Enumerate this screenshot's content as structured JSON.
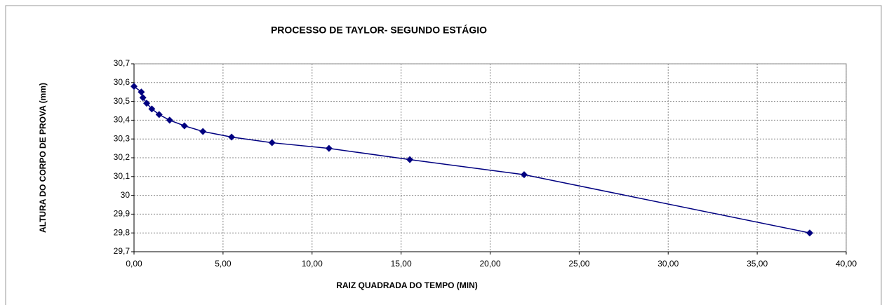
{
  "chart_data": {
    "type": "line",
    "title": "PROCESSO DE TAYLOR- SEGUNDO ESTÁGIO",
    "x_label": "RAIZ QUADRADA DO TEMPO (MIN)",
    "y_label": "ALTURA DO CORPO DE PROVA (mm)",
    "series": [
      {
        "color": "#000080",
        "x": [
          0,
          0.41,
          0.5,
          0.71,
          1.0,
          1.41,
          2.0,
          2.83,
          3.87,
          5.48,
          7.75,
          10.95,
          15.49,
          21.91,
          37.95
        ],
        "values": [
          30.58,
          30.55,
          30.52,
          30.49,
          30.46,
          30.43,
          30.4,
          30.37,
          30.34,
          30.31,
          30.28,
          30.25,
          30.19,
          30.11,
          29.8
        ]
      }
    ],
    "xlim": [
      0,
      40
    ],
    "xticks": [
      {
        "value": 0,
        "label": "0,00"
      },
      {
        "value": 5,
        "label": "5,00"
      },
      {
        "value": 10,
        "label": "10,00"
      },
      {
        "value": 15,
        "label": "15,00"
      },
      {
        "value": 20,
        "label": "20,00"
      },
      {
        "value": 25,
        "label": "25,00"
      },
      {
        "value": 30,
        "label": "30,00"
      },
      {
        "value": 35,
        "label": "35,00"
      },
      {
        "value": 40,
        "label": "40,00"
      }
    ],
    "ylim": [
      29.7,
      30.7
    ],
    "yticks": [
      {
        "value": 29.7,
        "label": "29,7"
      },
      {
        "value": 29.8,
        "label": "29,8"
      },
      {
        "value": 29.9,
        "label": "29,9"
      },
      30,
      {
        "value": 30.1,
        "label": "30,1"
      },
      {
        "value": 30.2,
        "label": "30,2"
      },
      {
        "value": 30.3,
        "label": "30,3"
      },
      {
        "value": 30.4,
        "label": "30,4"
      },
      {
        "value": 30.5,
        "label": "30,5"
      },
      {
        "value": 30.6,
        "label": "30,6"
      },
      {
        "value": 30.7,
        "label": "30,7"
      }
    ],
    "grid": true
  }
}
